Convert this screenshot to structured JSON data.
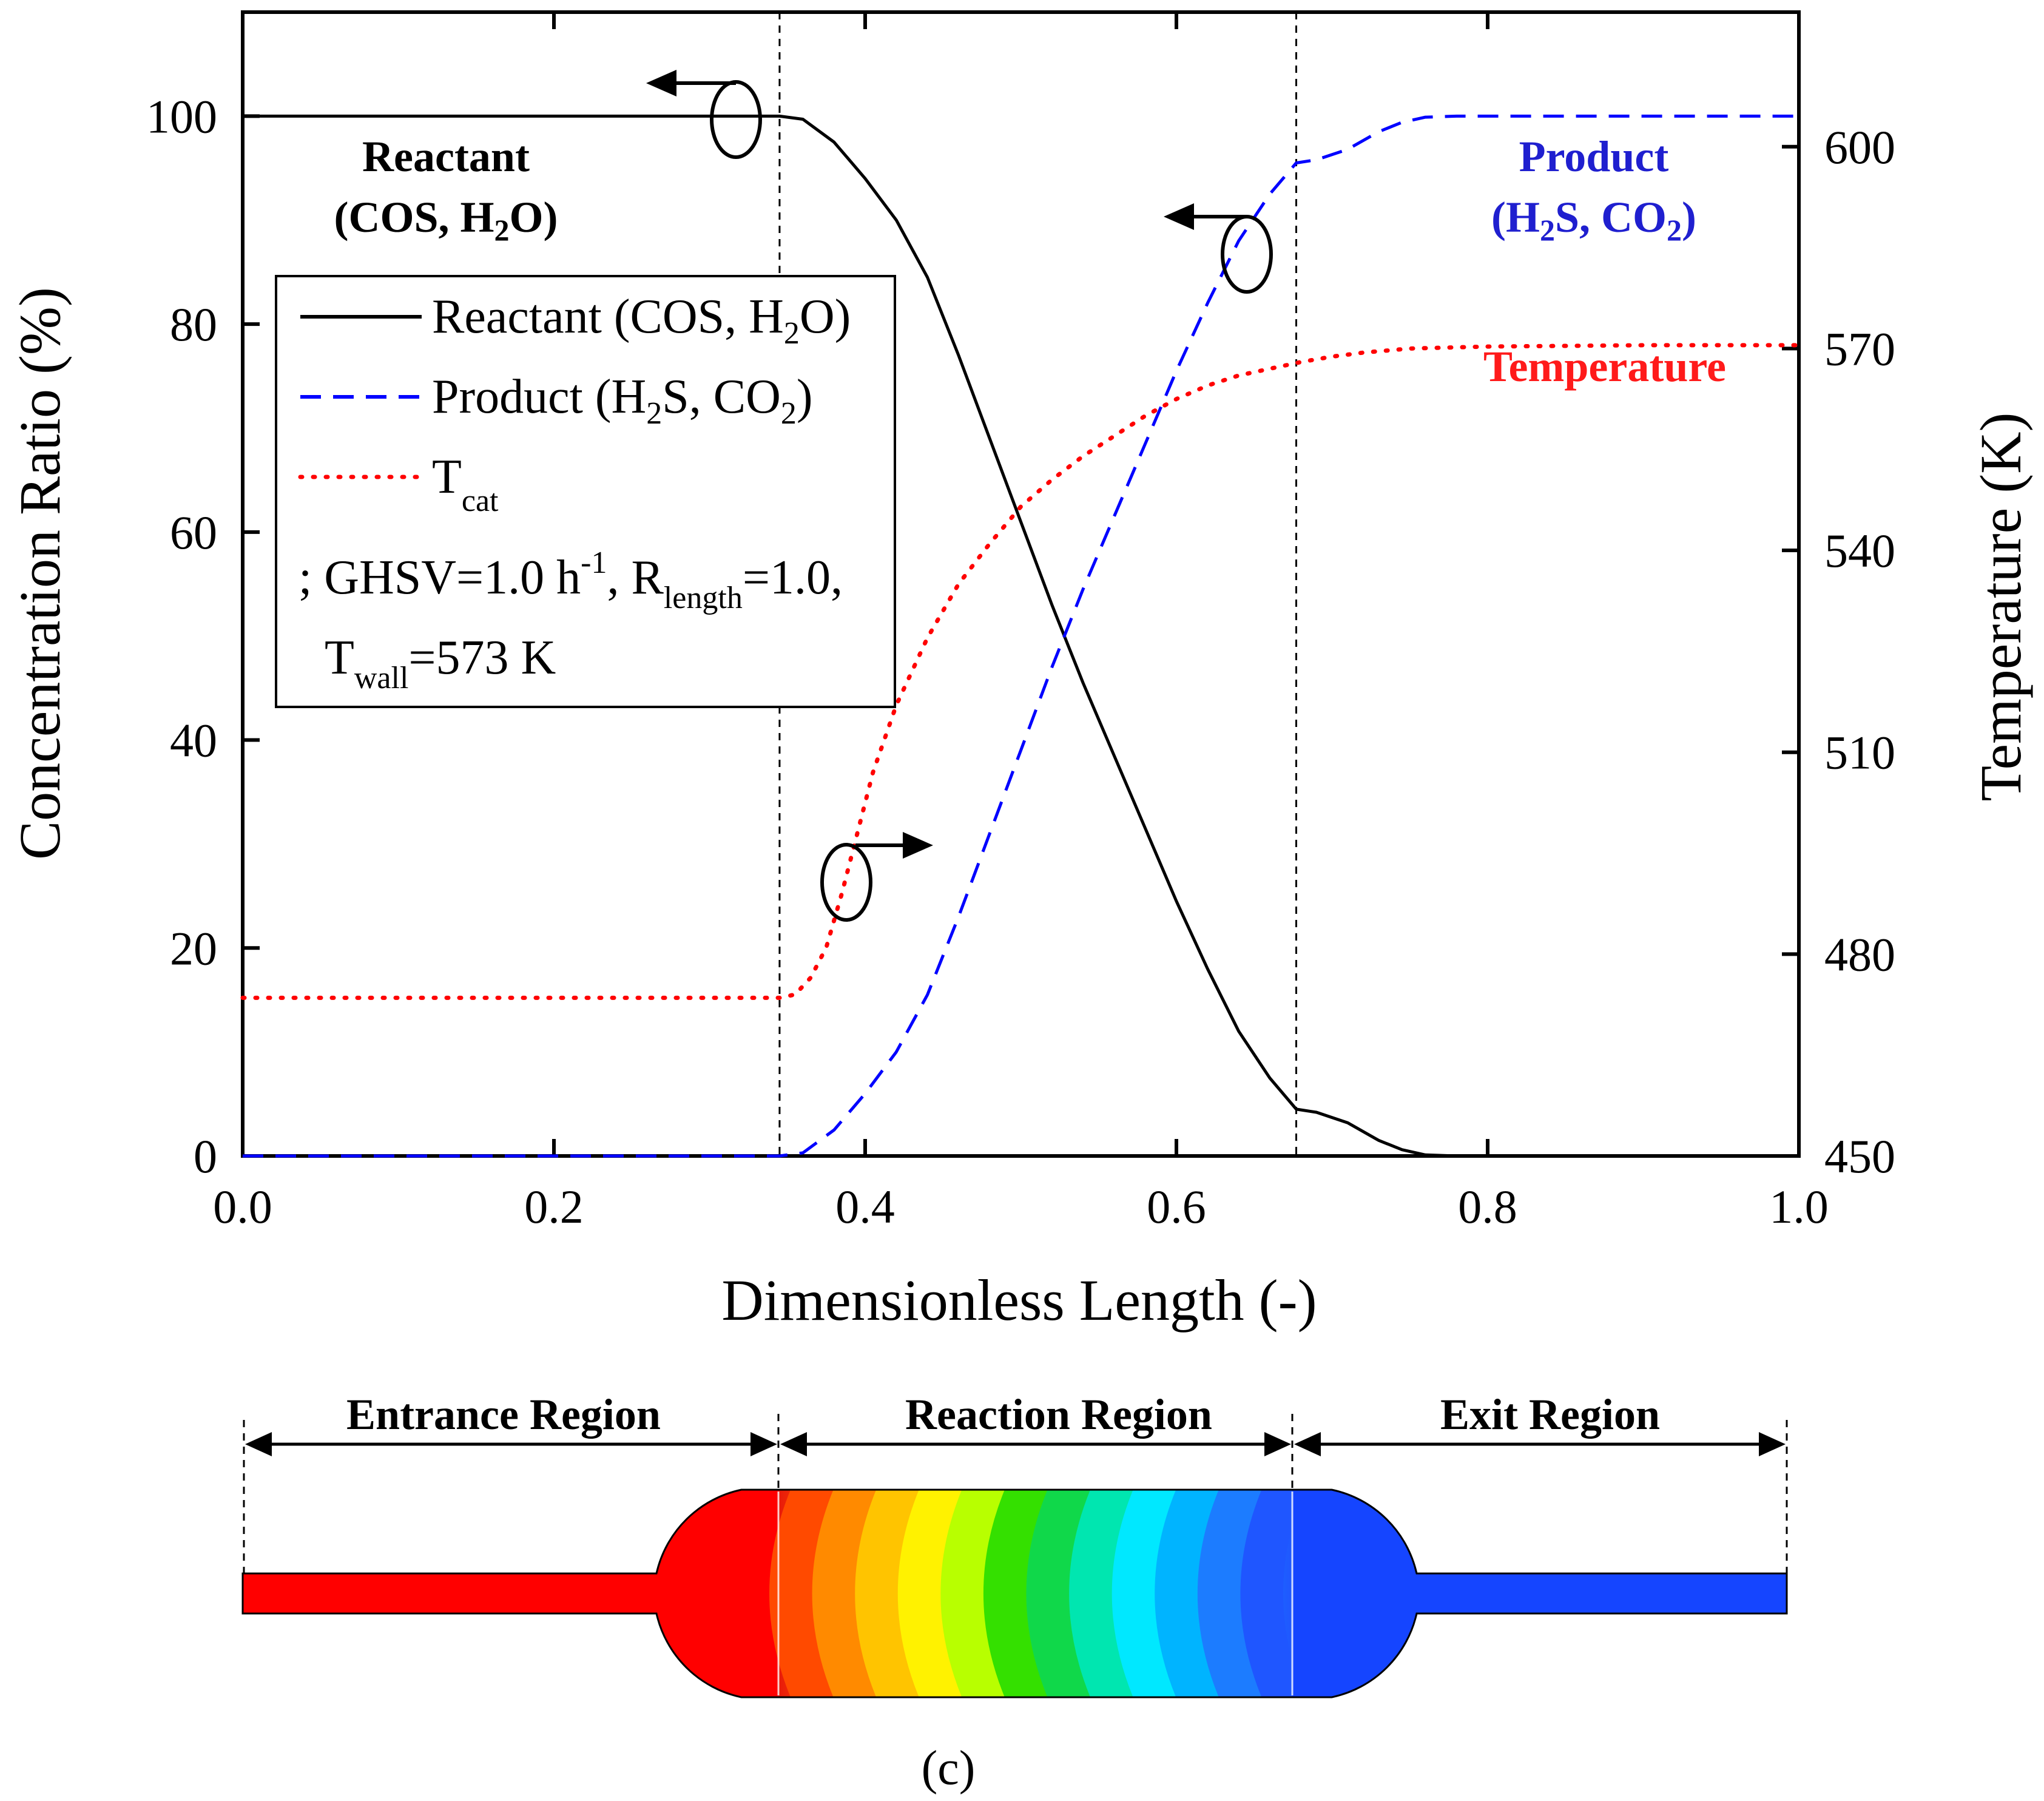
{
  "chart_data": {
    "type": "line",
    "xlabel": "Dimensionless Length (-)",
    "ylabel": "Concentration Ratio (%)",
    "y2label": "Temperature (K)",
    "xlim": [
      0,
      1.0
    ],
    "ylim": [
      0,
      110
    ],
    "y2lim": [
      450,
      620
    ],
    "x_ticks": [
      "0.0",
      "0.2",
      "0.4",
      "0.6",
      "0.8",
      "1.0"
    ],
    "y_ticks": [
      "0",
      "20",
      "40",
      "60",
      "80",
      "100"
    ],
    "y2_ticks": [
      "450",
      "480",
      "510",
      "540",
      "570",
      "600"
    ],
    "region_boundaries": [
      0.345,
      0.677
    ],
    "series": [
      {
        "name": "Reactant (COS, H2O)",
        "axis": "left",
        "color": "#000000",
        "style": "solid",
        "points": [
          [
            0,
            100
          ],
          [
            0.345,
            100
          ],
          [
            0.36,
            99.7
          ],
          [
            0.38,
            97.5
          ],
          [
            0.4,
            94
          ],
          [
            0.42,
            90
          ],
          [
            0.44,
            84.5
          ],
          [
            0.46,
            77
          ],
          [
            0.48,
            69
          ],
          [
            0.5,
            61
          ],
          [
            0.52,
            53
          ],
          [
            0.54,
            45.5
          ],
          [
            0.56,
            38.5
          ],
          [
            0.58,
            31.5
          ],
          [
            0.6,
            24.5
          ],
          [
            0.62,
            18
          ],
          [
            0.64,
            12
          ],
          [
            0.66,
            7.5
          ],
          [
            0.677,
            4.5
          ],
          [
            0.69,
            4.2
          ],
          [
            0.71,
            3.2
          ],
          [
            0.73,
            1.5
          ],
          [
            0.745,
            0.6
          ],
          [
            0.76,
            0.1
          ],
          [
            0.78,
            0
          ],
          [
            1.0,
            0
          ]
        ]
      },
      {
        "name": "Product (H2S, CO2)",
        "axis": "left",
        "color": "#0000ff",
        "style": "dashed",
        "points": [
          [
            0,
            0
          ],
          [
            0.345,
            0
          ],
          [
            0.36,
            0.3
          ],
          [
            0.38,
            2.5
          ],
          [
            0.4,
            6
          ],
          [
            0.42,
            10
          ],
          [
            0.44,
            15.5
          ],
          [
            0.46,
            23
          ],
          [
            0.48,
            31
          ],
          [
            0.5,
            39
          ],
          [
            0.52,
            47
          ],
          [
            0.54,
            54.5
          ],
          [
            0.56,
            61.5
          ],
          [
            0.58,
            68.5
          ],
          [
            0.6,
            75.5
          ],
          [
            0.62,
            82
          ],
          [
            0.64,
            88
          ],
          [
            0.66,
            92.5
          ],
          [
            0.677,
            95.5
          ],
          [
            0.69,
            95.8
          ],
          [
            0.71,
            96.8
          ],
          [
            0.73,
            98.5
          ],
          [
            0.745,
            99.4
          ],
          [
            0.76,
            99.9
          ],
          [
            0.78,
            100
          ],
          [
            1.0,
            100
          ]
        ]
      },
      {
        "name": "T_cat",
        "axis": "right",
        "color": "#ff0000",
        "style": "dotted",
        "points": [
          [
            0,
            473.5
          ],
          [
            0.345,
            473.5
          ],
          [
            0.355,
            474
          ],
          [
            0.365,
            476.5
          ],
          [
            0.375,
            481
          ],
          [
            0.385,
            489
          ],
          [
            0.395,
            498
          ],
          [
            0.405,
            507
          ],
          [
            0.42,
            517
          ],
          [
            0.44,
            527
          ],
          [
            0.46,
            535
          ],
          [
            0.48,
            541
          ],
          [
            0.5,
            546.5
          ],
          [
            0.52,
            550.5
          ],
          [
            0.54,
            554
          ],
          [
            0.56,
            557
          ],
          [
            0.58,
            560
          ],
          [
            0.6,
            562.5
          ],
          [
            0.62,
            564.5
          ],
          [
            0.64,
            566
          ],
          [
            0.66,
            567
          ],
          [
            0.68,
            568
          ],
          [
            0.7,
            568.8
          ],
          [
            0.72,
            569.4
          ],
          [
            0.75,
            570
          ],
          [
            0.8,
            570.3
          ],
          [
            0.9,
            570.5
          ],
          [
            1.0,
            570.5
          ]
        ]
      }
    ],
    "legend": {
      "position": "top-left",
      "entries": [
        {
          "main": "Reactant (COS, H",
          "sub": "2",
          "tail": "O)"
        },
        {
          "main": "Product (H",
          "sub": "2",
          "tail": "S, CO",
          "sub2": "2",
          "tail2": ")"
        },
        {
          "main": "T",
          "sub": "cat"
        }
      ],
      "conditions_line1": {
        "a": "; GHSV=1.0 h",
        "sup": "-1",
        "b": ", R",
        "sub": "length",
        "c": "=1.0,"
      },
      "conditions_line2": {
        "a": "T",
        "sub": "wall",
        "b": "=573 K"
      }
    },
    "annotations": {
      "reactant_label": {
        "line1": "Reactant",
        "line2a": "(COS, H",
        "sub": "2",
        "line2b": "O)"
      },
      "product_label": {
        "line1": "Product",
        "line2a": "(H",
        "sub1": "2",
        "line2b": "S, CO",
        "sub2": "2",
        "line2c": ")"
      },
      "temperature_label": "Temperature"
    }
  },
  "reactor_diagram": {
    "regions": [
      "Entrance Region",
      "Reaction Region",
      "Exit Region"
    ],
    "colors": {
      "entrance": "#ff0000",
      "exit": "#1545ff",
      "gradient": [
        "#e81a0a",
        "#ff4a00",
        "#ff8a00",
        "#ffc400",
        "#fff200",
        "#b8ff00",
        "#34e000",
        "#10d84a",
        "#00e6b0",
        "#00e8ff",
        "#00b4ff",
        "#1c7cff",
        "#1f56ff"
      ]
    }
  },
  "panel_label": "(c)"
}
